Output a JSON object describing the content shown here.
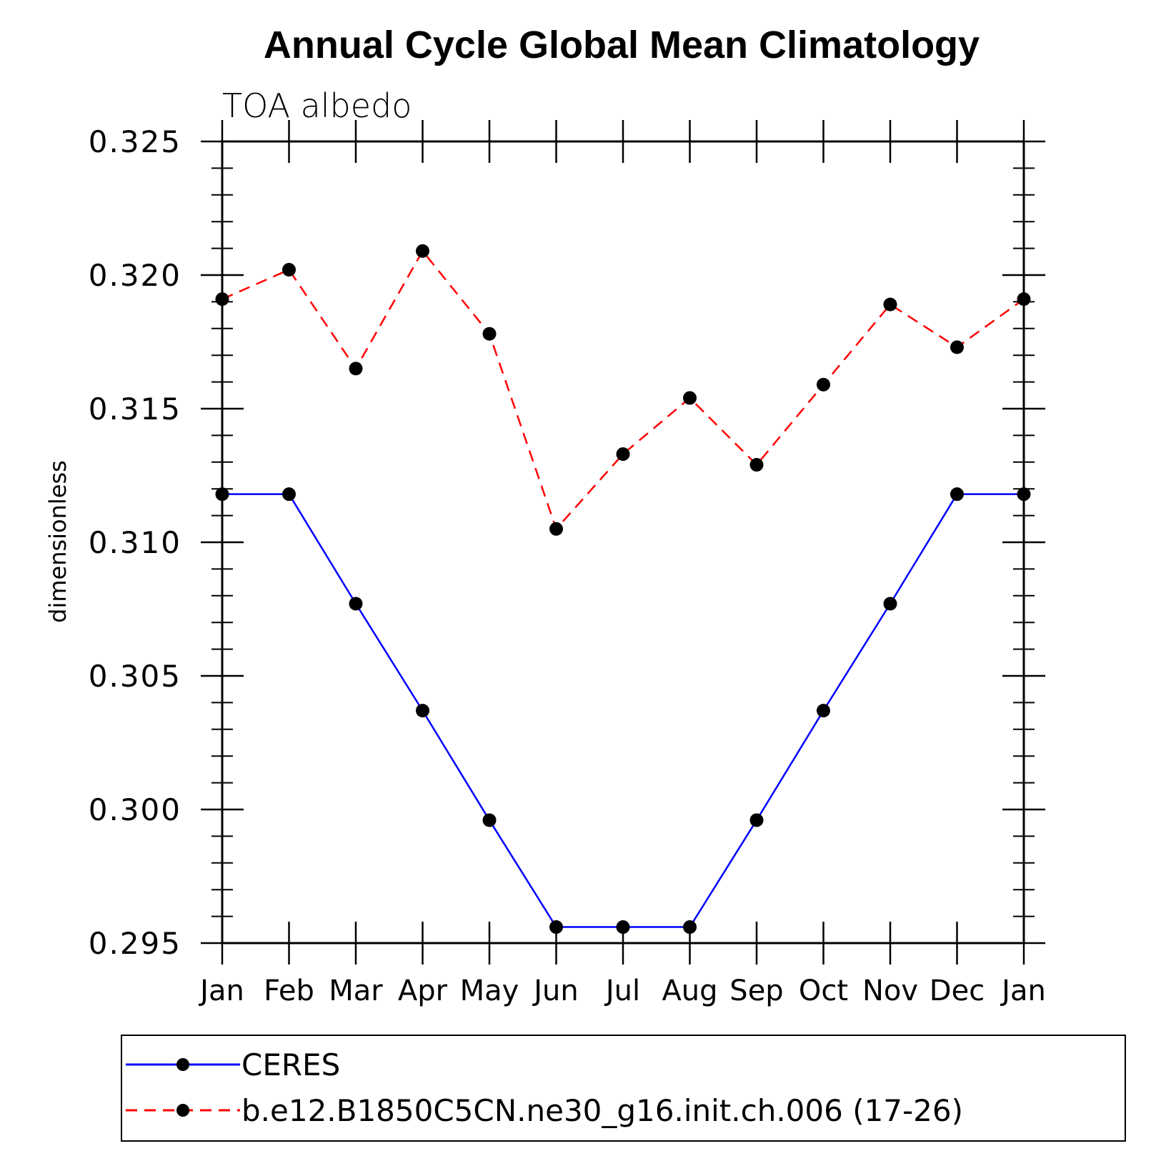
{
  "chart_data": {
    "type": "line",
    "title": "Annual Cycle Global Mean Climatology",
    "subtitle": "TOA albedo",
    "xlabel": "",
    "ylabel": "dimensionless",
    "categories": [
      "Jan",
      "Feb",
      "Mar",
      "Apr",
      "May",
      "Jun",
      "Jul",
      "Aug",
      "Sep",
      "Oct",
      "Nov",
      "Dec",
      "Jan"
    ],
    "ylim": [
      0.295,
      0.325
    ],
    "yticks": [
      "0.295",
      "0.300",
      "0.305",
      "0.310",
      "0.315",
      "0.320",
      "0.325"
    ],
    "ytick_values": [
      0.295,
      0.3,
      0.305,
      0.31,
      0.315,
      0.32,
      0.325
    ],
    "grid": false,
    "legend_position": "bottom",
    "series": [
      {
        "name": "CERES",
        "color": "#0000ff",
        "dash": "solid",
        "values": [
          0.3118,
          0.3118,
          0.3077,
          0.3037,
          0.2996,
          0.2956,
          0.2956,
          0.2956,
          0.2996,
          0.3037,
          0.3077,
          0.3118,
          0.3118
        ]
      },
      {
        "name": "b.e12.B1850C5CN.ne30_g16.init.ch.006 (17-26)",
        "color": "#ff0000",
        "dash": "dashed",
        "values": [
          0.3191,
          0.3202,
          0.3165,
          0.3209,
          0.3178,
          0.3105,
          0.3133,
          0.3154,
          0.3129,
          0.3159,
          0.3189,
          0.3173,
          0.3191
        ]
      }
    ]
  }
}
